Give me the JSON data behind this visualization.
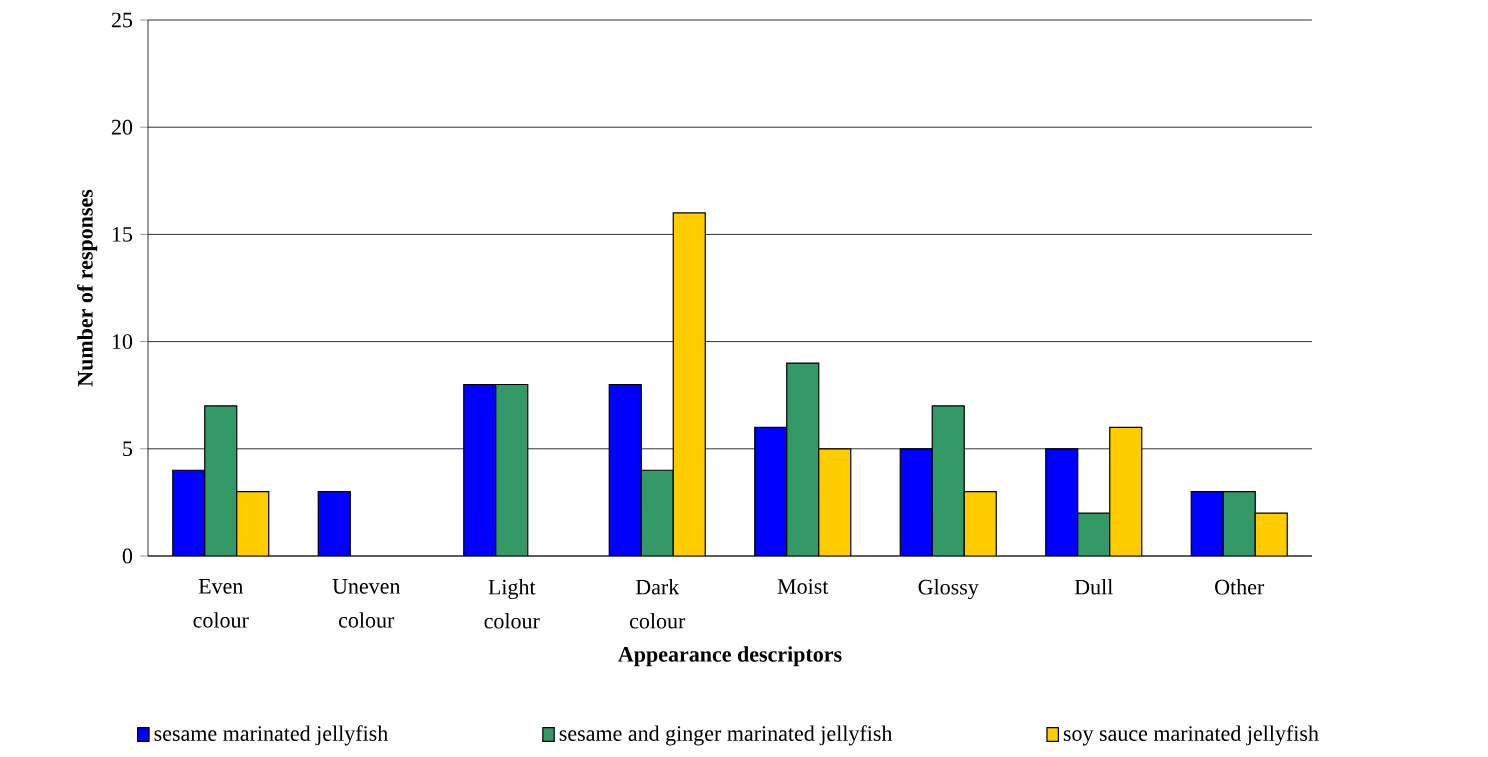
{
  "chart_data": {
    "type": "bar",
    "xlabel": "Appearance descriptors",
    "ylabel": "Number of responses",
    "categories": [
      "Even colour",
      "Uneven colour",
      "Light colour",
      "Dark colour",
      "Moist",
      "Glossy",
      "Dull",
      "Other"
    ],
    "series": [
      {
        "name": "sesame marinated jellyfish",
        "color": "#0000ff",
        "values": [
          4,
          3,
          8,
          8,
          6,
          5,
          5,
          3
        ]
      },
      {
        "name": "sesame and ginger marinated jellyfish",
        "color": "#339966",
        "values": [
          7,
          null,
          8,
          4,
          9,
          7,
          2,
          3
        ]
      },
      {
        "name": "soy sauce marinated jellyfish",
        "color": "#ffcc00",
        "values": [
          3,
          null,
          null,
          16,
          5,
          3,
          6,
          2
        ]
      }
    ],
    "ylim": [
      0,
      25
    ],
    "yticks": [
      0,
      5,
      10,
      15,
      20,
      25
    ],
    "grid": "y",
    "legend": "bottom"
  }
}
